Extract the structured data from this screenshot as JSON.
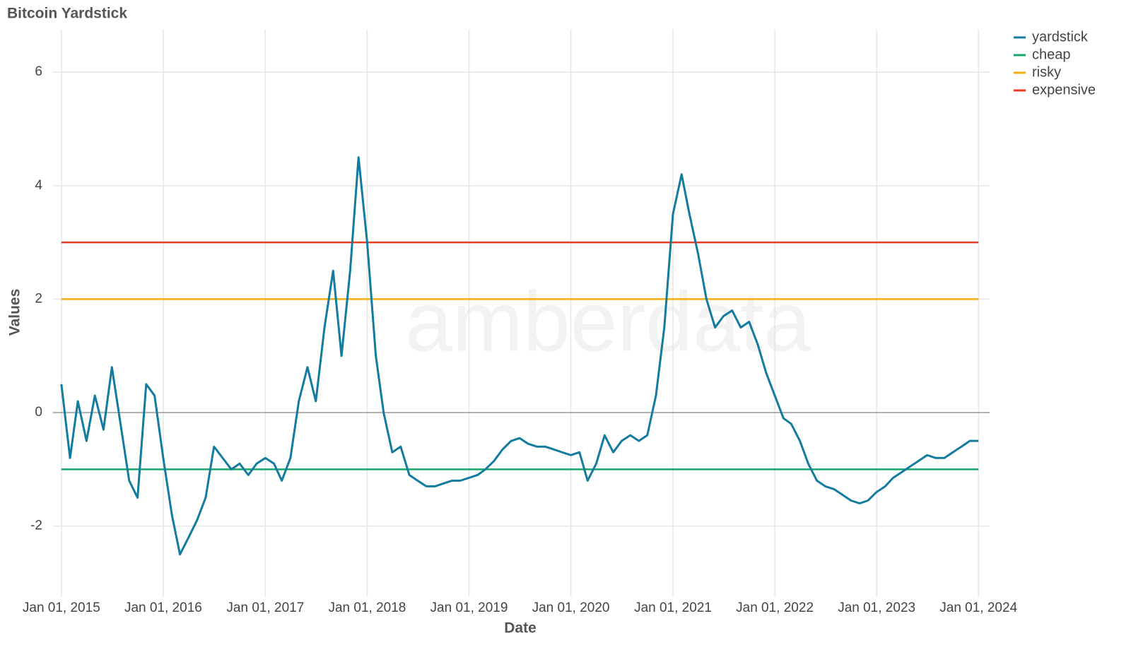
{
  "chart_data": {
    "type": "line",
    "title": "Bitcoin Yardstick",
    "xlabel": "Date",
    "ylabel": "Values",
    "watermark": "amberdata",
    "xlim": [
      "2014-12-02",
      "2024-02-10"
    ],
    "xticks": [
      {
        "value": "2015-01-01",
        "label": "Jan 01, 2015"
      },
      {
        "value": "2016-01-01",
        "label": "Jan 01, 2016"
      },
      {
        "value": "2017-01-01",
        "label": "Jan 01, 2017"
      },
      {
        "value": "2018-01-01",
        "label": "Jan 01, 2018"
      },
      {
        "value": "2019-01-01",
        "label": "Jan 01, 2019"
      },
      {
        "value": "2020-01-01",
        "label": "Jan 01, 2020"
      },
      {
        "value": "2021-01-01",
        "label": "Jan 01, 2021"
      },
      {
        "value": "2022-01-01",
        "label": "Jan 01, 2022"
      },
      {
        "value": "2023-01-01",
        "label": "Jan 01, 2023"
      },
      {
        "value": "2024-01-01",
        "label": "Jan 01, 2024"
      }
    ],
    "ylim": [
      -3.25,
      6.75
    ],
    "yticks": [
      -2,
      0,
      2,
      4,
      6
    ],
    "grid": true,
    "legend": "top-right",
    "series": [
      {
        "name": "yardstick",
        "color": "#137c9e",
        "x": [
          "2015-01-01",
          "2015-02-01",
          "2015-03-01",
          "2015-04-01",
          "2015-05-01",
          "2015-06-01",
          "2015-07-01",
          "2015-08-01",
          "2015-09-01",
          "2015-10-01",
          "2015-11-01",
          "2015-12-01",
          "2016-01-01",
          "2016-02-01",
          "2016-03-01",
          "2016-04-01",
          "2016-05-01",
          "2016-06-01",
          "2016-07-01",
          "2016-08-01",
          "2016-09-01",
          "2016-10-01",
          "2016-11-01",
          "2016-12-01",
          "2017-01-01",
          "2017-02-01",
          "2017-03-01",
          "2017-04-01",
          "2017-05-01",
          "2017-06-01",
          "2017-07-01",
          "2017-08-01",
          "2017-09-01",
          "2017-10-01",
          "2017-11-01",
          "2017-12-01",
          "2018-01-01",
          "2018-02-01",
          "2018-03-01",
          "2018-04-01",
          "2018-05-01",
          "2018-06-01",
          "2018-07-01",
          "2018-08-01",
          "2018-09-01",
          "2018-10-01",
          "2018-11-01",
          "2018-12-01",
          "2019-01-01",
          "2019-02-01",
          "2019-03-01",
          "2019-04-01",
          "2019-05-01",
          "2019-06-01",
          "2019-07-01",
          "2019-08-01",
          "2019-09-01",
          "2019-10-01",
          "2019-11-01",
          "2019-12-01",
          "2020-01-01",
          "2020-02-01",
          "2020-03-01",
          "2020-04-01",
          "2020-05-01",
          "2020-06-01",
          "2020-07-01",
          "2020-08-01",
          "2020-09-01",
          "2020-10-01",
          "2020-11-01",
          "2020-12-01",
          "2021-01-01",
          "2021-02-01",
          "2021-03-01",
          "2021-04-01",
          "2021-05-01",
          "2021-06-01",
          "2021-07-01",
          "2021-08-01",
          "2021-09-01",
          "2021-10-01",
          "2021-11-01",
          "2021-12-01",
          "2022-01-01",
          "2022-02-01",
          "2022-03-01",
          "2022-04-01",
          "2022-05-01",
          "2022-06-01",
          "2022-07-01",
          "2022-08-01",
          "2022-09-01",
          "2022-10-01",
          "2022-11-01",
          "2022-12-01",
          "2023-01-01",
          "2023-02-01",
          "2023-03-01",
          "2023-04-01",
          "2023-05-01",
          "2023-06-01",
          "2023-07-01",
          "2023-08-01",
          "2023-09-01",
          "2023-10-01",
          "2023-11-01",
          "2023-12-01",
          "2024-01-01"
        ],
        "values": [
          0.5,
          -0.8,
          0.2,
          -0.5,
          0.3,
          -0.3,
          0.8,
          -0.2,
          -1.2,
          -1.5,
          0.5,
          0.3,
          -0.8,
          -1.8,
          -2.5,
          -2.2,
          -1.9,
          -1.5,
          -0.6,
          -0.8,
          -1.0,
          -0.9,
          -1.1,
          -0.9,
          -0.8,
          -0.9,
          -1.2,
          -0.8,
          0.2,
          0.8,
          0.2,
          1.5,
          2.5,
          1.0,
          2.5,
          4.5,
          3.0,
          1.0,
          0.0,
          -0.7,
          -0.6,
          -1.1,
          -1.2,
          -1.3,
          -1.3,
          -1.25,
          -1.2,
          -1.2,
          -1.15,
          -1.1,
          -1.0,
          -0.85,
          -0.65,
          -0.5,
          -0.45,
          -0.55,
          -0.6,
          -0.6,
          -0.65,
          -0.7,
          -0.75,
          -0.7,
          -1.2,
          -0.9,
          -0.4,
          -0.7,
          -0.5,
          -0.4,
          -0.5,
          -0.4,
          0.3,
          1.5,
          3.5,
          4.2,
          3.5,
          2.8,
          2.0,
          1.5,
          1.7,
          1.8,
          1.5,
          1.6,
          1.2,
          0.7,
          0.3,
          -0.1,
          -0.2,
          -0.5,
          -0.9,
          -1.2,
          -1.3,
          -1.35,
          -1.45,
          -1.55,
          -1.6,
          -1.55,
          -1.4,
          -1.3,
          -1.15,
          -1.05,
          -0.95,
          -0.85,
          -0.75,
          -0.8,
          -0.8,
          -0.7,
          -0.6,
          -0.5,
          -0.5
        ]
      },
      {
        "name": "cheap",
        "color": "#14a86c",
        "x": [
          "2015-01-01",
          "2024-01-01"
        ],
        "values": [
          -1,
          -1
        ]
      },
      {
        "name": "risky",
        "color": "#f5ad0a",
        "x": [
          "2015-01-01",
          "2024-01-01"
        ],
        "values": [
          2,
          2
        ]
      },
      {
        "name": "expensive",
        "color": "#ee3b24",
        "x": [
          "2015-01-01",
          "2024-01-01"
        ],
        "values": [
          3,
          3
        ]
      }
    ]
  }
}
